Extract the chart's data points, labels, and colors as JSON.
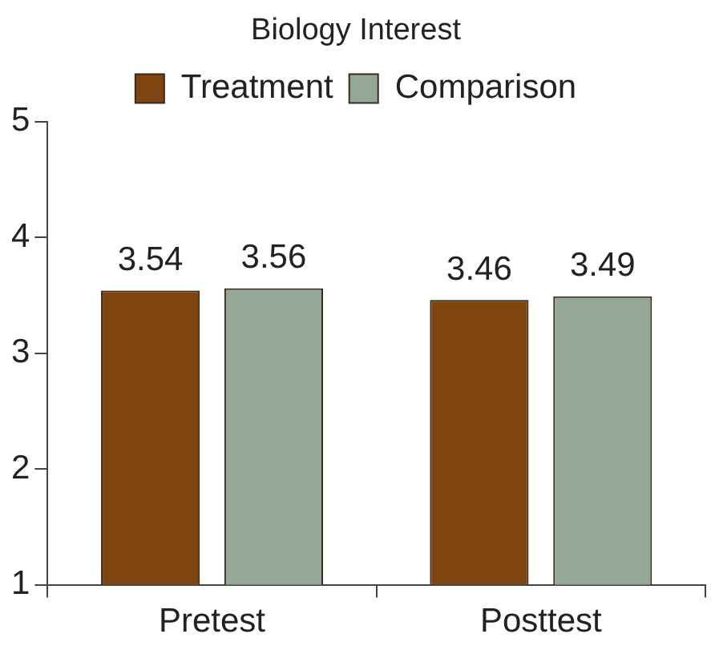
{
  "chart_data": {
    "type": "bar",
    "title": "Biology Interest",
    "categories": [
      "Pretest",
      "Posttest"
    ],
    "series": [
      {
        "name": "Treatment",
        "color": "#7f4511",
        "values": [
          3.54,
          3.46
        ]
      },
      {
        "name": "Comparison",
        "color": "#94a898",
        "values": [
          3.56,
          3.49
        ]
      }
    ],
    "ylim": [
      1,
      5
    ],
    "yticks": [
      1,
      2,
      3,
      4,
      5
    ],
    "grid": false,
    "legend": "top",
    "data_labels": true
  }
}
